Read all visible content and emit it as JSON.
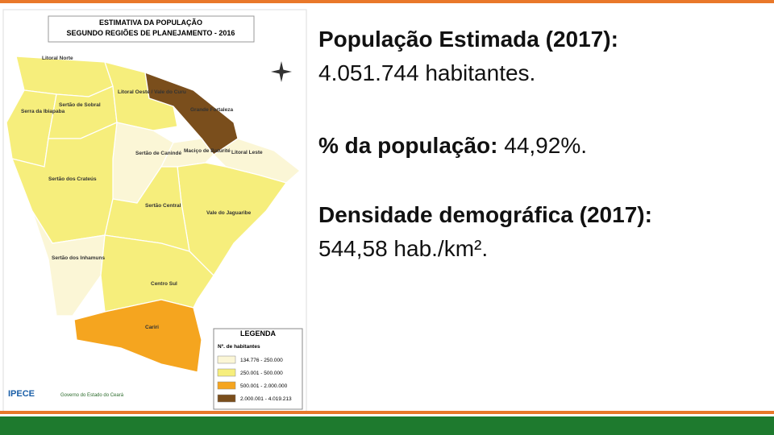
{
  "map": {
    "title": "ESTIMATIVA DA POPULAÇÃO",
    "subtitle": "SEGUNDO REGIÕES DE PLANEJAMENTO - 2016",
    "regions": [
      {
        "label": "Litoral Norte",
        "color": "#f6ee7c"
      },
      {
        "label": "Serra da Ibiapaba",
        "color": "#f6ee7c"
      },
      {
        "label": "Sertão de Sobral",
        "color": "#f6ee7c"
      },
      {
        "label": "Litoral Oeste / Vale do Curu",
        "color": "#f6ee7c"
      },
      {
        "label": "Grande Fortaleza",
        "color": "#7a4e1c"
      },
      {
        "label": "Sertão de Canindé",
        "color": "#fbf6d6"
      },
      {
        "label": "Maciço de Baturité",
        "color": "#fbf6d6"
      },
      {
        "label": "Litoral Leste",
        "color": "#fbf6d6"
      },
      {
        "label": "Sertão dos Crateús",
        "color": "#f6ee7c"
      },
      {
        "label": "Vale do Jaguaribe",
        "color": "#f6ee7c"
      },
      {
        "label": "Sertão Central",
        "color": "#f6ee7c"
      },
      {
        "label": "Sertão dos Inhamuns",
        "color": "#fbf6d6"
      },
      {
        "label": "Centro Sul",
        "color": "#f6ee7c"
      },
      {
        "label": "Cariri",
        "color": "#f5a51f"
      }
    ],
    "legend": {
      "title": "LEGENDA",
      "subtitle": "Nº. de habitantes",
      "items": [
        {
          "label": "134.776 - 250.000",
          "color": "#fbf6d6"
        },
        {
          "label": "250.001 - 500.000",
          "color": "#f6ee7c"
        },
        {
          "label": "500.001 - 2.000.000",
          "color": "#f5a51f"
        },
        {
          "label": "2.000.001 - 4.019.213",
          "color": "#7a4e1c"
        }
      ]
    },
    "logos": [
      "IPECE",
      "Governo do Estado do Ceará"
    ]
  },
  "info": {
    "population_label": "População Estimada (2017):",
    "population_value": "4.051.744 habitantes.",
    "share_label": "% da população:",
    "share_value": "44,92%.",
    "density_label": "Densidade demográfica (2017):",
    "density_value": "544,58 hab./km²."
  }
}
